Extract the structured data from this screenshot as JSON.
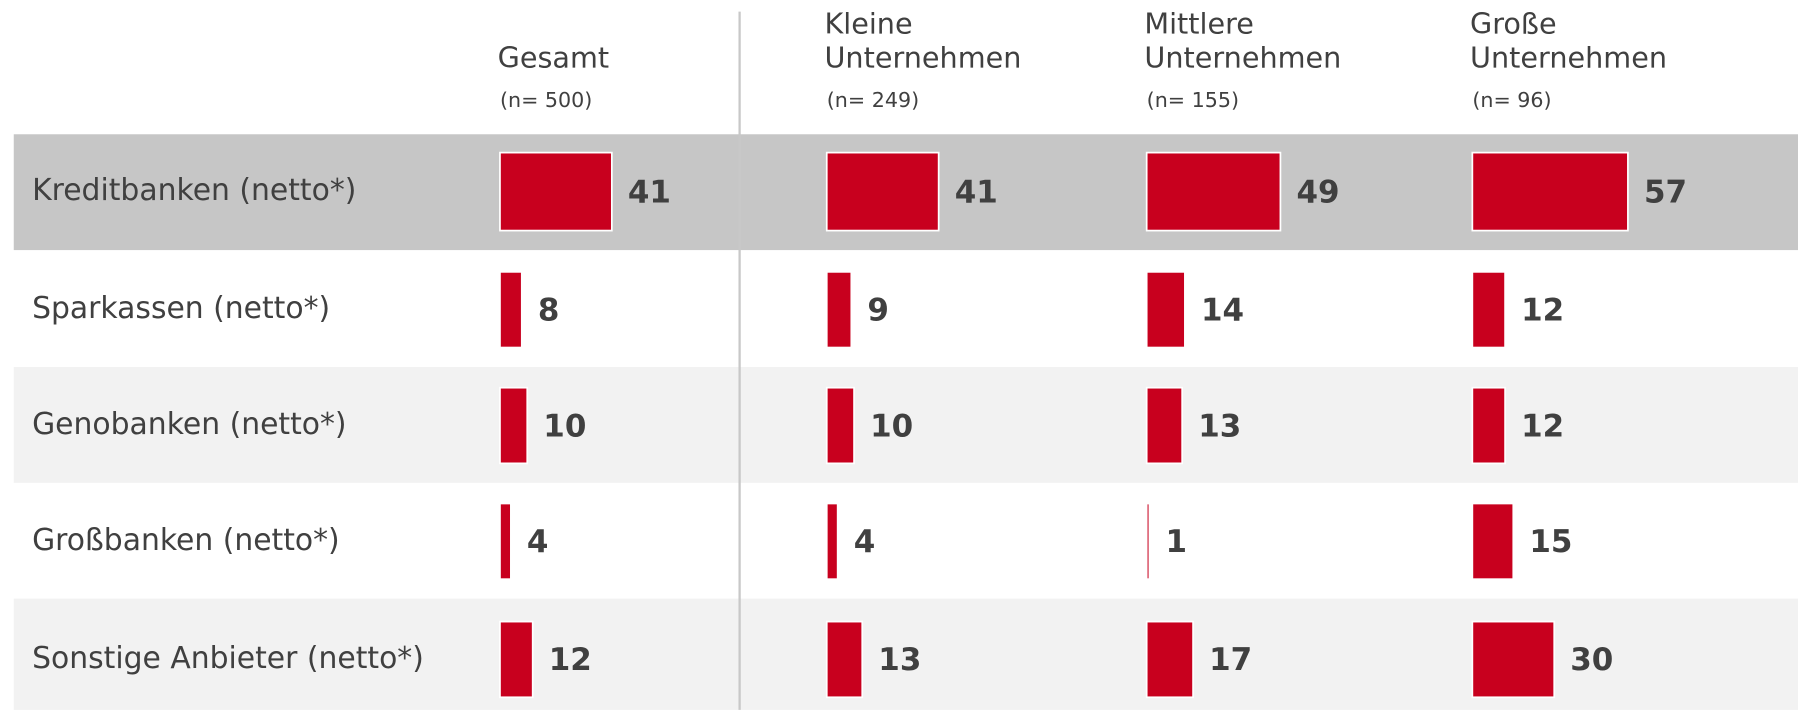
{
  "chart_data": {
    "type": "bar",
    "categories": [
      "Kreditbanken (netto*)",
      "Sparkassen (netto*)",
      "Genobanken (netto*)",
      "Großbanken (netto*)",
      "Sonstige Anbieter (netto*)"
    ],
    "series": [
      {
        "name": "Gesamt",
        "sample": "(n= 500)",
        "color": "#c8001e",
        "values": [
          41,
          8,
          10,
          4,
          12
        ]
      },
      {
        "name": "Kleine Unternehmen",
        "sample": "(n= 249)",
        "color": "#c8001e",
        "values": [
          41,
          9,
          10,
          4,
          13
        ]
      },
      {
        "name": "Mittlere Unternehmen",
        "sample": "(n= 155)",
        "color": "#c8001e",
        "values": [
          49,
          14,
          13,
          1,
          17
        ]
      },
      {
        "name": "Große Unternehmen",
        "sample": "(n= 96)",
        "color": "#c8001e",
        "values": [
          57,
          12,
          12,
          15,
          30
        ]
      }
    ]
  }
}
